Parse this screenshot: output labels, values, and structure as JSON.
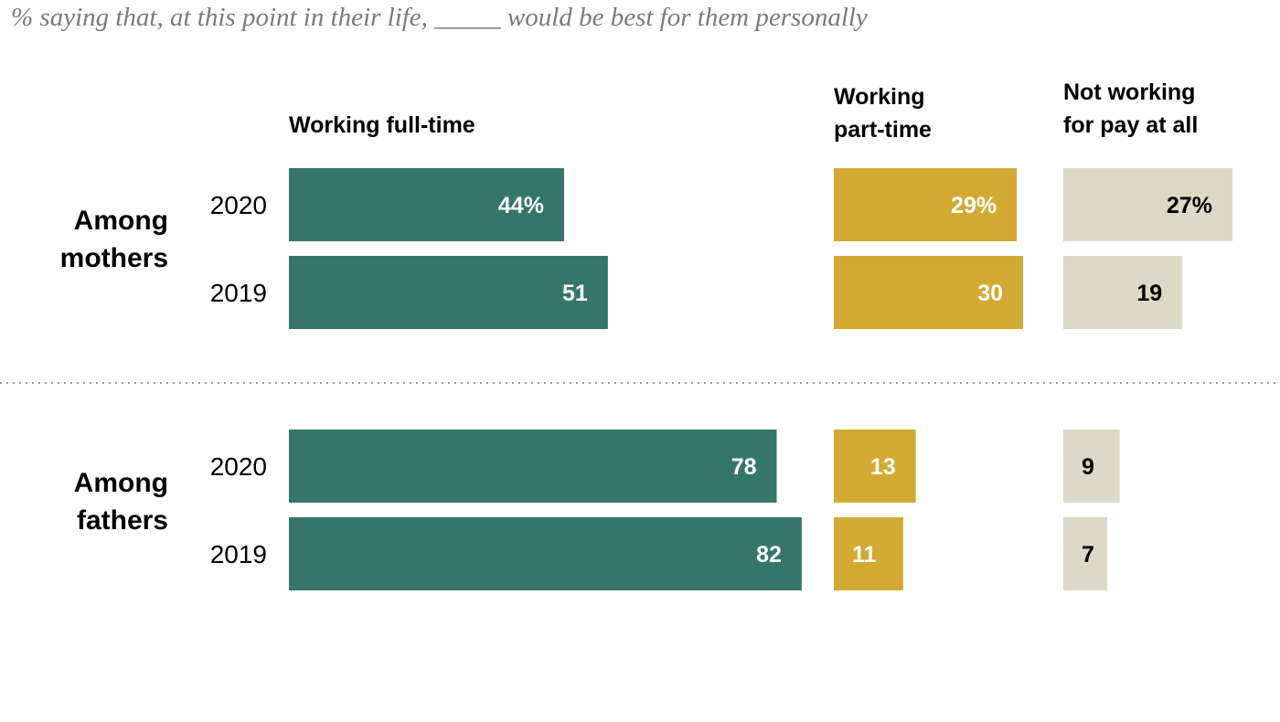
{
  "subtitle": "% saying that, at this point in their life, _____ would be best for them personally",
  "colors": {
    "full_time": "#36756a",
    "part_time": "#d2aa33",
    "not_working": "#dcd9c6",
    "label_light": "#ffffff",
    "label_dark": "#000000",
    "divider": "#9a9a9a"
  },
  "chart_data": {
    "type": "bar",
    "orientation": "horizontal",
    "title": "% saying that, at this point in their life, _____ would be best for them personally",
    "columns": [
      {
        "key": "full_time",
        "label_lines": [
          "Working full-time"
        ]
      },
      {
        "key": "part_time",
        "label_lines": [
          "Working",
          "part-time"
        ]
      },
      {
        "key": "not_working",
        "label_lines": [
          "Not working",
          "for pay at all"
        ]
      }
    ],
    "groups": [
      {
        "label_lines": [
          "Among",
          "mothers"
        ],
        "rows": [
          {
            "year": "2020",
            "values": {
              "full_time": 44,
              "part_time": 29,
              "not_working": 27
            },
            "labels": {
              "full_time": "44%",
              "part_time": "29%",
              "not_working": "27%"
            }
          },
          {
            "year": "2019",
            "values": {
              "full_time": 51,
              "part_time": 30,
              "not_working": 19
            },
            "labels": {
              "full_time": "51",
              "part_time": "30",
              "not_working": "19"
            }
          }
        ]
      },
      {
        "label_lines": [
          "Among",
          "fathers"
        ],
        "rows": [
          {
            "year": "2020",
            "values": {
              "full_time": 78,
              "part_time": 13,
              "not_working": 9
            },
            "labels": {
              "full_time": "78",
              "part_time": "13",
              "not_working": "9"
            }
          },
          {
            "year": "2019",
            "values": {
              "full_time": 82,
              "part_time": 11,
              "not_working": 7
            },
            "labels": {
              "full_time": "82",
              "part_time": "11",
              "not_working": "7"
            }
          }
        ]
      }
    ],
    "xlim": [
      0,
      100
    ]
  }
}
